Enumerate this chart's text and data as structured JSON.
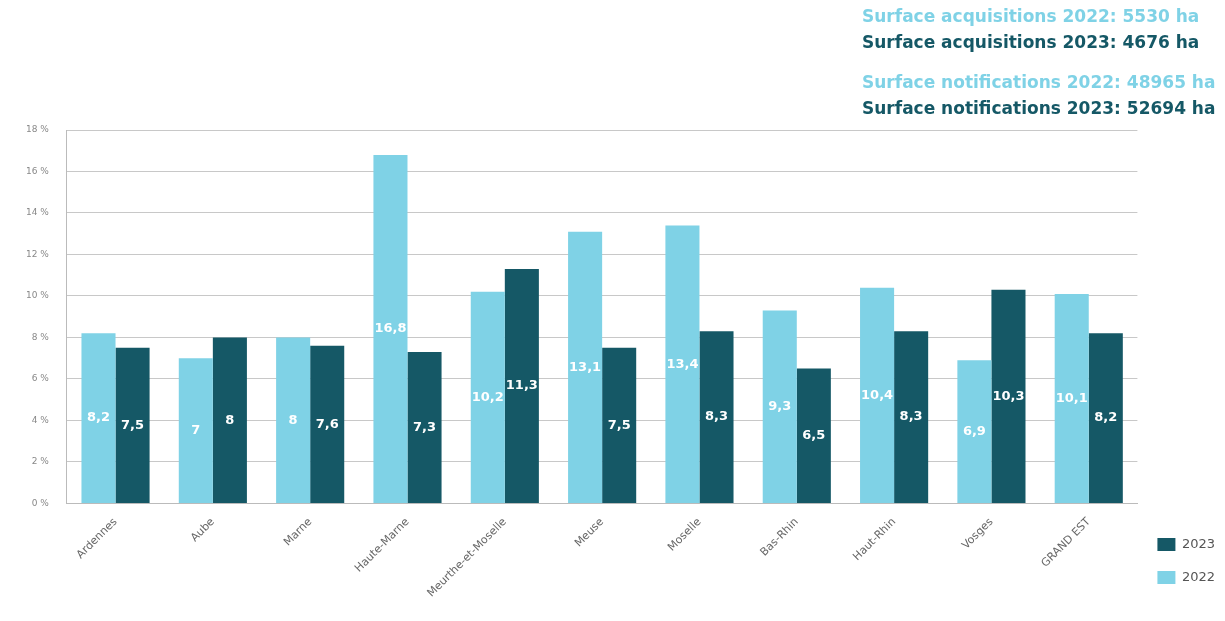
{
  "chart_data": {
    "type": "bar",
    "categories": [
      "Ardennes",
      "Aube",
      "Marne",
      "Haute-Marne",
      "Meurthe-et-Moselle",
      "Meuse",
      "Moselle",
      "Bas-Rhin",
      "Haut-Rhin",
      "Vosges",
      "GRAND EST"
    ],
    "series": [
      {
        "name": "2022",
        "color": "#7fd2e6",
        "values": [
          8.2,
          7,
          8,
          16.8,
          10.2,
          13.1,
          13.4,
          9.3,
          10.4,
          6.9,
          10.1
        ],
        "value_labels": [
          "8,2",
          "7",
          "8",
          "16,8",
          "10,2",
          "13,1",
          "13,4",
          "9,3",
          "10,4",
          "6,9",
          "10,1"
        ]
      },
      {
        "name": "2023",
        "color": "#155866",
        "values": [
          7.5,
          8,
          7.6,
          7.3,
          11.3,
          7.5,
          8.3,
          6.5,
          8.3,
          10.3,
          8.2
        ],
        "value_labels": [
          "7,5",
          "8",
          "7,6",
          "7,3",
          "11,3",
          "7,5",
          "8,3",
          "6,5",
          "8,3",
          "10,3",
          "8,2"
        ]
      }
    ],
    "ylim": [
      0,
      18
    ],
    "yticks": [
      {
        "value": 0,
        "label": "0 %"
      },
      {
        "value": 2,
        "label": "2 %"
      },
      {
        "value": 4,
        "label": "4 %"
      },
      {
        "value": 6,
        "label": "6 %"
      },
      {
        "value": 8,
        "label": "8 %"
      },
      {
        "value": 10,
        "label": "10 %"
      },
      {
        "value": 12,
        "label": "12 %"
      },
      {
        "value": 14,
        "label": "14 %"
      },
      {
        "value": 16,
        "label": "16 %"
      },
      {
        "value": 18,
        "label": "18 %"
      }
    ],
    "grid": "y",
    "legend": "bottom right",
    "annotations": [
      "Surface acquisitions 2022: 5530 ha",
      "Surface acquisitions 2023: 4676 ha",
      "Surface notifications 2022: 48965 ha",
      "Surface notifications 2023: 52694 ha"
    ]
  }
}
